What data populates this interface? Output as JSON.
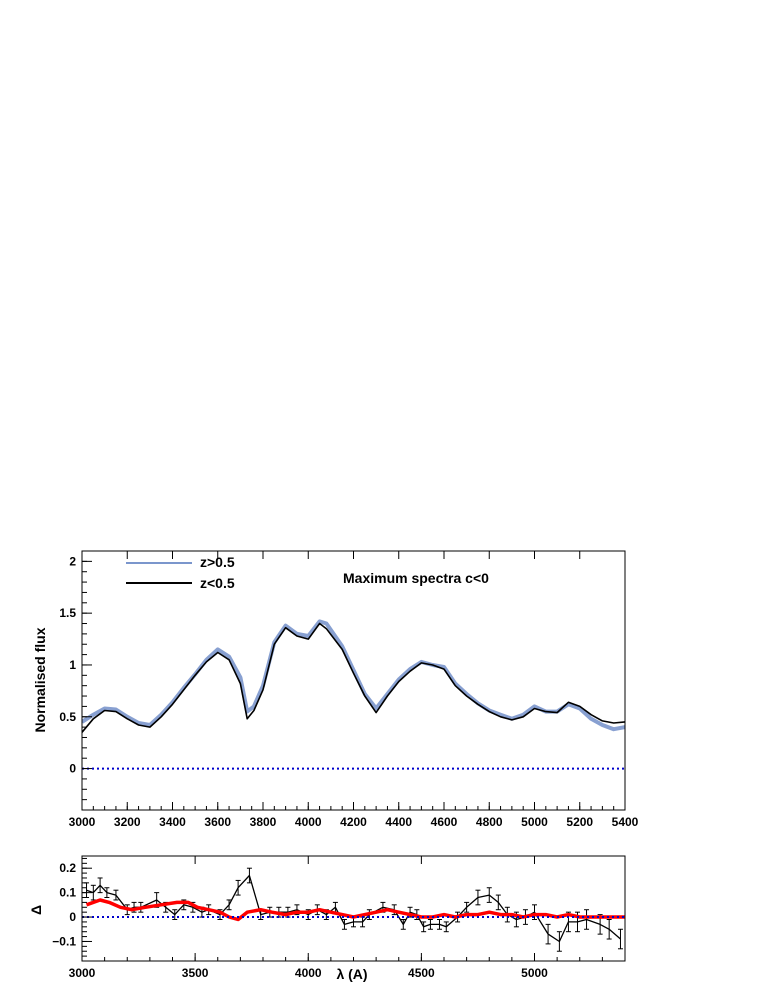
{
  "chart_data": [
    {
      "type": "line",
      "title": "Maximum spectra c<0",
      "xlabel": "",
      "ylabel": "Normalised flux",
      "xlim": [
        3000,
        5400
      ],
      "ylim": [
        -0.4,
        2.1
      ],
      "x_ticks": [
        "3000",
        "3200",
        "3400",
        "3600",
        "3800",
        "4000",
        "4200",
        "4400",
        "4600",
        "4800",
        "5000",
        "5200",
        "5400"
      ],
      "y_ticks": [
        "0",
        "0.5",
        "1",
        "1.5",
        "2"
      ],
      "legend": [
        {
          "label": "z>0.5",
          "color": "#7b96cc"
        },
        {
          "label": "z<0.5",
          "color": "#000000"
        }
      ],
      "series": [
        {
          "name": "z>0.5",
          "color": "#7b96cc",
          "x": [
            3000,
            3050,
            3100,
            3150,
            3200,
            3250,
            3300,
            3350,
            3400,
            3450,
            3500,
            3550,
            3600,
            3650,
            3700,
            3730,
            3760,
            3800,
            3850,
            3900,
            3950,
            4000,
            4050,
            4080,
            4150,
            4200,
            4250,
            4300,
            4350,
            4400,
            4450,
            4500,
            4550,
            4600,
            4650,
            4700,
            4750,
            4800,
            4850,
            4900,
            4950,
            5000,
            5050,
            5100,
            5150,
            5200,
            5250,
            5300,
            5350,
            5400
          ],
          "y": [
            0.45,
            0.52,
            0.58,
            0.57,
            0.5,
            0.44,
            0.42,
            0.52,
            0.64,
            0.78,
            0.91,
            1.05,
            1.15,
            1.08,
            0.88,
            0.55,
            0.6,
            0.8,
            1.22,
            1.38,
            1.3,
            1.28,
            1.42,
            1.4,
            1.18,
            0.95,
            0.72,
            0.58,
            0.72,
            0.86,
            0.96,
            1.03,
            1.0,
            0.98,
            0.82,
            0.72,
            0.63,
            0.56,
            0.52,
            0.48,
            0.52,
            0.6,
            0.55,
            0.55,
            0.62,
            0.58,
            0.48,
            0.42,
            0.38,
            0.4
          ]
        },
        {
          "name": "z<0.5",
          "color": "#000000",
          "x": [
            3000,
            3050,
            3100,
            3150,
            3200,
            3250,
            3300,
            3350,
            3400,
            3450,
            3500,
            3550,
            3600,
            3650,
            3700,
            3730,
            3760,
            3800,
            3850,
            3900,
            3950,
            4000,
            4050,
            4080,
            4150,
            4200,
            4250,
            4300,
            4350,
            4400,
            4450,
            4500,
            4550,
            4600,
            4650,
            4700,
            4750,
            4800,
            4850,
            4900,
            4950,
            5000,
            5050,
            5100,
            5150,
            5200,
            5250,
            5300,
            5350,
            5400
          ],
          "y": [
            0.35,
            0.48,
            0.56,
            0.55,
            0.48,
            0.42,
            0.4,
            0.5,
            0.62,
            0.76,
            0.9,
            1.03,
            1.12,
            1.05,
            0.82,
            0.48,
            0.56,
            0.76,
            1.2,
            1.36,
            1.28,
            1.25,
            1.4,
            1.35,
            1.15,
            0.92,
            0.7,
            0.54,
            0.7,
            0.84,
            0.94,
            1.02,
            1.0,
            0.96,
            0.8,
            0.7,
            0.62,
            0.55,
            0.5,
            0.47,
            0.5,
            0.58,
            0.55,
            0.54,
            0.64,
            0.6,
            0.52,
            0.46,
            0.44,
            0.45
          ]
        },
        {
          "name": "zero",
          "color": "#0000cc",
          "style": "dotted",
          "x": [
            3000,
            5400
          ],
          "y": [
            0,
            0
          ]
        }
      ]
    },
    {
      "type": "line",
      "title": "",
      "xlabel": "λ (A)",
      "ylabel": "Δ",
      "xlim": [
        3000,
        5400
      ],
      "ylim": [
        -0.18,
        0.25
      ],
      "x_ticks": [
        "3000",
        "3500",
        "4000",
        "4500",
        "5000"
      ],
      "y_ticks": [
        "−0.1",
        "0",
        "0.1",
        "0.2"
      ],
      "series": [
        {
          "name": "difference",
          "color": "#000000",
          "errorbars": true,
          "x": [
            3020,
            3050,
            3080,
            3110,
            3150,
            3200,
            3230,
            3260,
            3330,
            3370,
            3410,
            3450,
            3490,
            3530,
            3560,
            3610,
            3650,
            3690,
            3740,
            3790,
            3830,
            3870,
            3910,
            3950,
            4000,
            4040,
            4080,
            4120,
            4160,
            4200,
            4240,
            4270,
            4330,
            4380,
            4420,
            4450,
            4480,
            4510,
            4540,
            4580,
            4610,
            4660,
            4700,
            4750,
            4800,
            4840,
            4880,
            4920,
            4960,
            5000,
            5060,
            5110,
            5150,
            5190,
            5230,
            5290,
            5330,
            5380
          ],
          "y": [
            0.11,
            0.1,
            0.13,
            0.1,
            0.09,
            0.03,
            0.04,
            0.04,
            0.07,
            0.04,
            0.01,
            0.05,
            0.04,
            0.02,
            0.03,
            0.01,
            0.05,
            0.12,
            0.17,
            0.01,
            0.02,
            0.02,
            0.02,
            0.03,
            0.01,
            0.03,
            0.01,
            0.04,
            -0.03,
            -0.02,
            -0.02,
            0.01,
            0.04,
            0.03,
            -0.03,
            0.02,
            0.01,
            -0.04,
            -0.03,
            -0.03,
            -0.04,
            0.0,
            0.04,
            0.08,
            0.09,
            0.06,
            0.01,
            -0.01,
            0.0,
            0.02,
            -0.07,
            -0.1,
            -0.02,
            -0.02,
            -0.01,
            -0.03,
            -0.05,
            -0.09
          ],
          "err": [
            0.03,
            0.03,
            0.03,
            0.02,
            0.02,
            0.02,
            0.02,
            0.02,
            0.03,
            0.02,
            0.02,
            0.02,
            0.02,
            0.02,
            0.02,
            0.02,
            0.02,
            0.03,
            0.03,
            0.02,
            0.02,
            0.02,
            0.02,
            0.02,
            0.02,
            0.02,
            0.02,
            0.02,
            0.02,
            0.02,
            0.02,
            0.02,
            0.02,
            0.02,
            0.02,
            0.02,
            0.02,
            0.02,
            0.02,
            0.02,
            0.02,
            0.02,
            0.02,
            0.03,
            0.03,
            0.03,
            0.03,
            0.03,
            0.03,
            0.03,
            0.04,
            0.04,
            0.04,
            0.04,
            0.04,
            0.04,
            0.04,
            0.04
          ]
        },
        {
          "name": "model",
          "color": "#ff0000",
          "x": [
            3020,
            3080,
            3120,
            3170,
            3220,
            3280,
            3350,
            3420,
            3470,
            3510,
            3560,
            3610,
            3650,
            3690,
            3730,
            3790,
            3840,
            3900,
            3950,
            4000,
            4050,
            4100,
            4150,
            4200,
            4250,
            4300,
            4350,
            4400,
            4450,
            4500,
            4550,
            4600,
            4650,
            4700,
            4750,
            4800,
            4850,
            4900,
            4950,
            5000,
            5050,
            5100,
            5150,
            5200,
            5250,
            5300,
            5350,
            5400
          ],
          "y": [
            0.05,
            0.07,
            0.06,
            0.04,
            0.03,
            0.04,
            0.05,
            0.06,
            0.06,
            0.04,
            0.03,
            0.02,
            0.0,
            -0.01,
            0.02,
            0.03,
            0.02,
            0.01,
            0.02,
            0.02,
            0.03,
            0.02,
            0.01,
            0.0,
            0.01,
            0.02,
            0.03,
            0.02,
            0.01,
            0.0,
            0.0,
            0.01,
            0.0,
            0.01,
            0.01,
            0.02,
            0.01,
            0.01,
            0.0,
            0.01,
            0.01,
            0.0,
            0.01,
            0.0,
            0.0,
            0.0,
            0.0,
            0.0
          ]
        },
        {
          "name": "zero",
          "color": "#0000cc",
          "style": "dotted",
          "x": [
            3000,
            5400
          ],
          "y": [
            0,
            0
          ]
        }
      ]
    }
  ]
}
